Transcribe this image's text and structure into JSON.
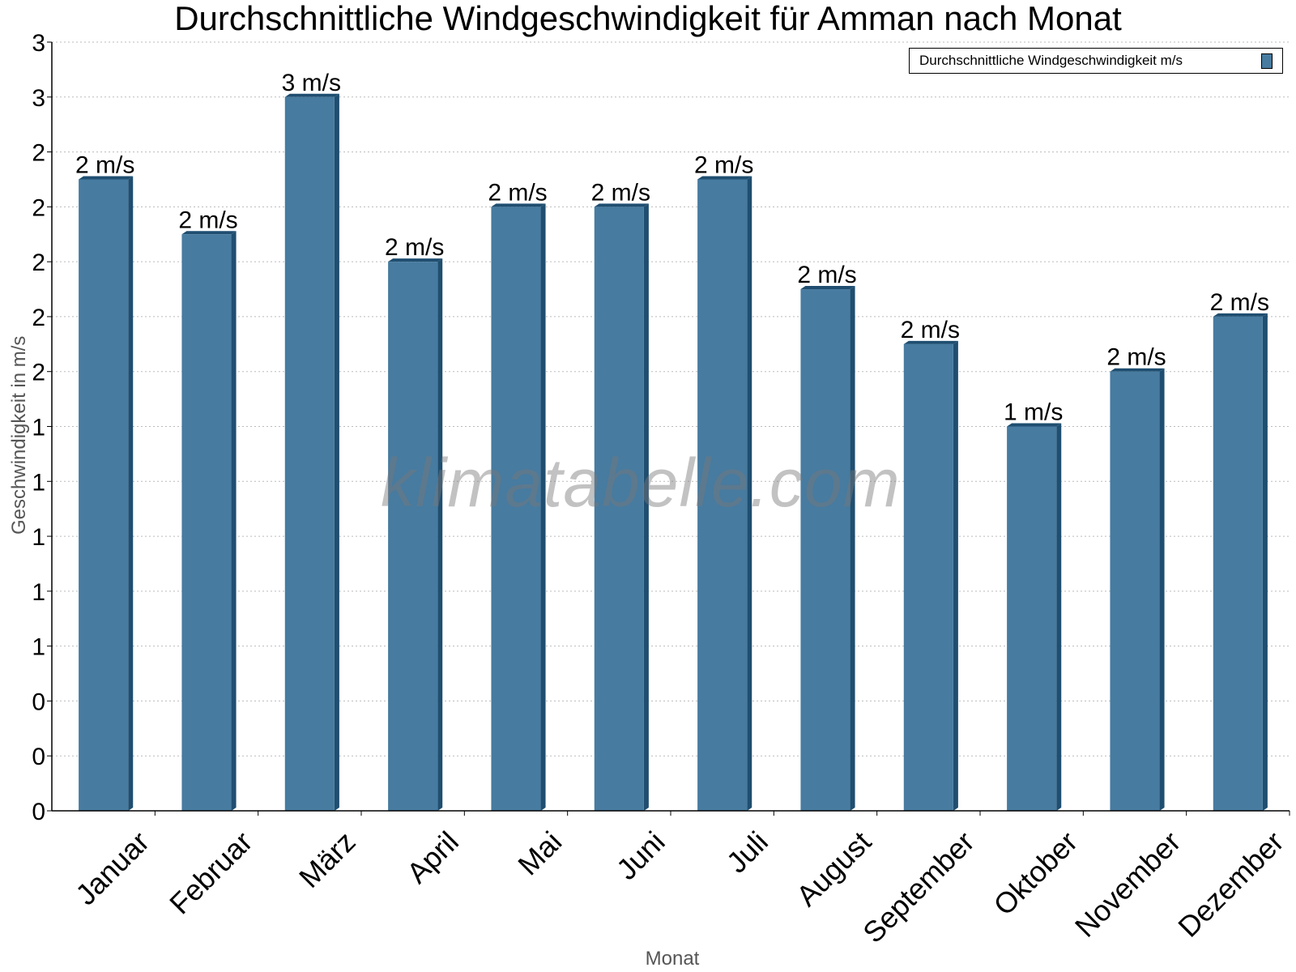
{
  "chart_data": {
    "type": "bar",
    "title": "Durchschnittliche Windgeschwindigkeit für Amman nach Monat",
    "xlabel": "Monat",
    "ylabel": "Geschwindigkeit in m/s",
    "categories": [
      "Januar",
      "Februar",
      "März",
      "April",
      "Mai",
      "Juni",
      "Juli",
      "August",
      "September",
      "Oktober",
      "November",
      "Dezember"
    ],
    "series": [
      {
        "name": "Durchschnittliche Windgeschwindigkeit m/s",
        "values": [
          2.3,
          2.1,
          2.6,
          2.0,
          2.2,
          2.2,
          2.3,
          1.9,
          1.7,
          1.4,
          1.6,
          1.8
        ],
        "data_labels": [
          "2 m/s",
          "2 m/s",
          "3 m/s",
          "2 m/s",
          "2 m/s",
          "2 m/s",
          "2 m/s",
          "2 m/s",
          "2 m/s",
          "1 m/s",
          "2 m/s",
          "2 m/s"
        ],
        "color": "#477ba0"
      }
    ],
    "ylim": [
      0,
      2.8
    ],
    "y_tick_values": [
      0,
      0.2,
      0.4,
      0.6,
      0.8,
      1.0,
      1.2,
      1.4,
      1.6,
      1.8,
      2.0,
      2.2,
      2.4,
      2.6,
      2.8
    ],
    "y_tick_labels": [
      "0",
      "0",
      "0",
      "1",
      "1",
      "1",
      "1",
      "1",
      "2",
      "2",
      "2",
      "2",
      "2",
      "3",
      "3"
    ],
    "grid": true,
    "legend_position": "top-right",
    "watermark": "klimatabelle.com"
  }
}
